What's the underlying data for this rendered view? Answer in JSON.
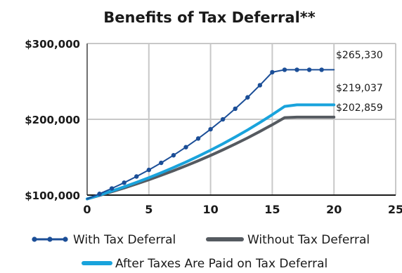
{
  "chart_data": {
    "type": "line",
    "title": "Benefits of Tax Deferral**",
    "xlabel": "",
    "ylabel": "",
    "xlim": [
      0,
      25
    ],
    "ylim": [
      100000,
      300000
    ],
    "x_ticks": [
      0,
      5,
      10,
      15,
      20,
      25
    ],
    "x_tick_labels": [
      "0",
      "5",
      "10",
      "15",
      "20",
      "25"
    ],
    "y_ticks": [
      100000,
      200000,
      300000
    ],
    "y_tick_labels": [
      "$100,000",
      "$200,000",
      "$300,000"
    ],
    "grid": true,
    "legend_position": "bottom",
    "colors": {
      "with_tax_deferral": "#1b4e97",
      "without_tax_deferral": "#555a60",
      "after_taxes": "#19a3dc",
      "grid": "#c8c8c8"
    },
    "series": [
      {
        "name": "With Tax Deferral",
        "marker": "circle",
        "x": [
          0,
          1,
          2,
          3,
          4,
          5,
          6,
          7,
          8,
          9,
          10,
          11,
          12,
          13,
          14,
          15,
          16,
          17,
          18,
          19,
          20
        ],
        "values": [
          95000,
          101650,
          108766,
          116379,
          124526,
          133243,
          142570,
          152550,
          163228,
          174654,
          186880,
          199961,
          213958,
          228935,
          244961,
          262108,
          265330,
          265330,
          265330,
          265330,
          265330
        ]
      },
      {
        "name": "Without Tax Deferral",
        "marker": "none",
        "x": [
          0,
          1,
          2,
          3,
          4,
          5,
          6,
          7,
          8,
          9,
          10,
          11,
          12,
          13,
          14,
          15,
          16,
          17,
          18,
          19,
          20
        ],
        "values": [
          95000,
          99593,
          104408,
          109455,
          114747,
          120294,
          126110,
          132206,
          138598,
          145299,
          152323,
          159687,
          167407,
          175500,
          183985,
          192879,
          202204,
          202859,
          202859,
          202859,
          202859
        ]
      },
      {
        "name": "After Taxes Are Paid on Tax Deferral",
        "marker": "none",
        "x": [
          0,
          1,
          2,
          3,
          4,
          5,
          6,
          7,
          8,
          9,
          10,
          11,
          12,
          13,
          14,
          15,
          16,
          17,
          18,
          19,
          20
        ],
        "values": [
          95000,
          100034,
          105336,
          110919,
          116798,
          122988,
          129507,
          136371,
          143598,
          151209,
          159223,
          167662,
          176548,
          185905,
          195758,
          206133,
          217058,
          219037,
          219037,
          219037,
          219037
        ]
      }
    ],
    "end_labels": [
      {
        "series": "With Tax Deferral",
        "text": "$265,330"
      },
      {
        "series": "After Taxes Are Paid on Tax Deferral",
        "text": "$219,037"
      },
      {
        "series": "Without Tax Deferral",
        "text": "$202,859"
      }
    ]
  }
}
